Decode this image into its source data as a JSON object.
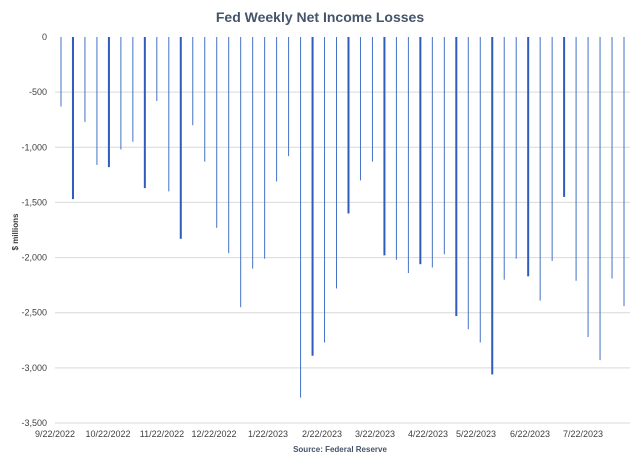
{
  "chart_data": {
    "type": "bar",
    "title": "Fed Weekly Net Income Losses",
    "xlabel": "",
    "ylabel": "$ millions",
    "source": "Source: Federal Reserve",
    "ylim": [
      -3500,
      0
    ],
    "yticks": [
      0,
      -500,
      -1000,
      -1500,
      -2000,
      -2500,
      -3000,
      -3500
    ],
    "ytick_labels": [
      "0",
      "-500",
      "-1,000",
      "-1,500",
      "-2,000",
      "-2,500",
      "-3,000",
      "-3,500"
    ],
    "xticks": [
      "9/22/2022",
      "10/22/2022",
      "11/22/2022",
      "12/22/2022",
      "1/22/2023",
      "2/22/2023",
      "3/22/2023",
      "4/22/2023",
      "5/22/2023",
      "6/22/2023",
      "7/22/2023"
    ],
    "grid": true,
    "legend": "none",
    "series": [
      {
        "name": "Weekly Net Income",
        "values": [
          -630,
          -1470,
          -770,
          -1160,
          -1180,
          -1020,
          -950,
          -1370,
          -580,
          -1400,
          -1830,
          -800,
          -1130,
          -1730,
          -1960,
          -2450,
          -2100,
          -2010,
          -1310,
          -1080,
          -3270,
          -2890,
          -2770,
          -2280,
          -1600,
          -1300,
          -1130,
          -1980,
          -2020,
          -2140,
          -2060,
          -2090,
          -1970,
          -2530,
          -2650,
          -2770,
          -3060,
          -2200,
          -2010,
          -2170,
          -2390,
          -2030,
          -1450,
          -2210,
          -2720,
          -2930,
          -2190,
          -2440
        ],
        "thick": [
          false,
          true,
          false,
          false,
          true,
          false,
          false,
          true,
          false,
          false,
          true,
          false,
          false,
          false,
          false,
          false,
          false,
          false,
          false,
          false,
          false,
          true,
          false,
          false,
          true,
          false,
          false,
          true,
          false,
          false,
          true,
          false,
          false,
          true,
          false,
          false,
          true,
          false,
          false,
          true,
          false,
          false,
          true,
          false,
          false,
          false,
          false,
          false
        ]
      }
    ]
  }
}
